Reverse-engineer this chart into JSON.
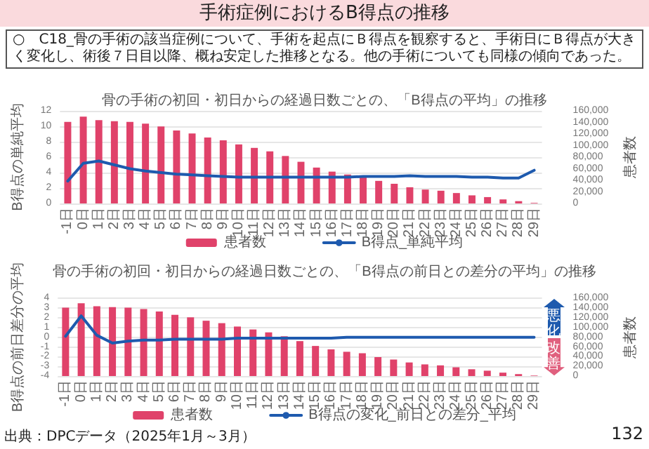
{
  "chart_data": [
    {
      "type": "bar",
      "title": "骨の手術の初回・初日からの経過日数ごとの、「B得点の平均」の推移",
      "annotations": [
        "手術症例におけるB得点の推移",
        "○　C18_骨の手術の該当症例について、手術を起点にＢ得点を観察すると、手術日にＢ得点が大きく変化し、術後７日目以降、概ね安定した推移となる。他の手術についても同様の傾向であった。"
      ],
      "ylabel": "B得点の単純平均",
      "y2label": "患者数",
      "categories": [
        "-1日",
        "0日",
        "1日",
        "2日",
        "3日",
        "4日",
        "5日",
        "6日",
        "7日",
        "8日",
        "9日",
        "10日",
        "11日",
        "12日",
        "13日",
        "14日",
        "15日",
        "16日",
        "17日",
        "18日",
        "19日",
        "20日",
        "21日",
        "22日",
        "23日",
        "24日",
        "25日",
        "26日",
        "27日",
        "28日",
        "29日"
      ],
      "series": [
        {
          "name": "患者数",
          "type": "bar",
          "axis": "y2",
          "color": "#e0426a",
          "values": [
            141000,
            150000,
            144000,
            142000,
            141000,
            138000,
            133000,
            126000,
            121000,
            114000,
            109000,
            102000,
            96000,
            90000,
            82000,
            72000,
            62000,
            55000,
            50000,
            47000,
            39000,
            34000,
            28000,
            24000,
            22000,
            18000,
            14000,
            11000,
            7000,
            4000,
            1000
          ]
        },
        {
          "name": "B得点_単純平均",
          "type": "line",
          "color": "#1e5aae",
          "values": [
            2.9,
            5.2,
            5.5,
            5.0,
            4.5,
            4.2,
            4.0,
            3.8,
            3.7,
            3.6,
            3.5,
            3.4,
            3.4,
            3.4,
            3.4,
            3.4,
            3.4,
            3.4,
            3.4,
            3.5,
            3.5,
            3.5,
            3.6,
            3.5,
            3.5,
            3.5,
            3.4,
            3.4,
            3.3,
            3.3,
            4.3
          ]
        }
      ],
      "ylim": [
        0,
        12
      ],
      "yticks": [
        0,
        2,
        4,
        6,
        8,
        10,
        12
      ],
      "y2lim": [
        0,
        160000
      ],
      "y2ticks": [
        0,
        {
          "value": 20000,
          "label": "20,000"
        },
        {
          "value": 40000,
          "label": "40,000"
        },
        {
          "value": 60000,
          "label": "60,000"
        },
        {
          "value": 80000,
          "label": "80,000"
        },
        {
          "value": 100000,
          "label": "100,000"
        },
        {
          "value": 120000,
          "label": "120,000"
        },
        {
          "value": 140000,
          "label": "140,000"
        },
        {
          "value": 160000,
          "label": "160,000"
        }
      ],
      "grid": "y",
      "legend": "bottom",
      "marker": "none",
      "line_style": "solid"
    },
    {
      "type": "bar",
      "title": "骨の手術の初回・初日からの経過日数ごとの、「B得点の前日との差分の平均」の推移",
      "annotations": [
        "悪化",
        "改善",
        "出典：DPCデータ（2025年1月～3月）",
        "132"
      ],
      "ylabel": "B得点の前日差分の平均",
      "y2label": "患者数",
      "categories": [
        "-1日",
        "0日",
        "1日",
        "2日",
        "3日",
        "4日",
        "5日",
        "6日",
        "7日",
        "8日",
        "9日",
        "10日",
        "11日",
        "12日",
        "13日",
        "14日",
        "15日",
        "16日",
        "17日",
        "18日",
        "19日",
        "20日",
        "21日",
        "22日",
        "23日",
        "24日",
        "25日",
        "26日",
        "27日",
        "28日",
        "29日"
      ],
      "series": [
        {
          "name": "患者数",
          "type": "bar",
          "axis": "y2",
          "color": "#e0426a",
          "values": [
            141000,
            150000,
            144000,
            142000,
            141000,
            138000,
            133000,
            126000,
            121000,
            114000,
            109000,
            102000,
            96000,
            90000,
            82000,
            72000,
            62000,
            55000,
            50000,
            47000,
            39000,
            34000,
            28000,
            24000,
            22000,
            18000,
            14000,
            11000,
            7000,
            4000,
            1000
          ]
        },
        {
          "name": "B得点の変化_前日との差分_平均",
          "type": "line",
          "color": "#1e5aae",
          "values": [
            0.1,
            2.2,
            0.2,
            -0.6,
            -0.4,
            -0.3,
            -0.3,
            -0.2,
            -0.2,
            -0.2,
            -0.2,
            -0.1,
            -0.1,
            -0.1,
            -0.1,
            -0.1,
            -0.1,
            -0.1,
            0,
            0,
            0,
            0,
            0,
            0,
            0,
            0,
            0,
            0,
            0,
            0,
            0
          ]
        }
      ],
      "ylim": [
        -4,
        4
      ],
      "yticks": [
        -4,
        -3,
        -2,
        -1,
        0,
        1,
        2,
        3,
        4
      ],
      "y2lim": [
        0,
        160000
      ],
      "y2ticks": [
        0,
        {
          "value": 20000,
          "label": "20,000"
        },
        {
          "value": 40000,
          "label": "40,000"
        },
        {
          "value": 60000,
          "label": "60,000"
        },
        {
          "value": 80000,
          "label": "80,000"
        },
        {
          "value": 100000,
          "label": "100,000"
        },
        {
          "value": 120000,
          "label": "120,000"
        },
        {
          "value": 140000,
          "label": "140,000"
        },
        {
          "value": 160000,
          "label": "160,000"
        }
      ],
      "grid": "y",
      "legend": "bottom",
      "marker": "none",
      "line_style": "solid"
    }
  ]
}
